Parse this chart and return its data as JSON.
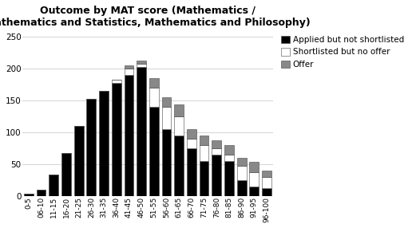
{
  "title": "Outcome by MAT score (Mathematics /\nMathematics and Statistics, Mathematics and Philosophy)",
  "categories": [
    "0-5",
    "06-10",
    "11-15",
    "16-20",
    "21-25",
    "26-30",
    "31-35",
    "36-40",
    "41-45",
    "46-50",
    "51-55",
    "56-60",
    "61-65",
    "66-70",
    "71-75",
    "76-80",
    "81-85",
    "86-90",
    "91-95",
    "96-100"
  ],
  "applied_not_shortlisted": [
    3,
    9,
    33,
    67,
    110,
    152,
    165,
    177,
    190,
    202,
    140,
    105,
    95,
    75,
    55,
    65,
    55,
    25,
    15,
    12
  ],
  "shortlisted_no_offer": [
    0,
    0,
    0,
    0,
    0,
    0,
    0,
    5,
    10,
    5,
    30,
    35,
    30,
    15,
    25,
    10,
    10,
    22,
    22,
    18
  ],
  "offer": [
    0,
    0,
    0,
    0,
    0,
    0,
    0,
    0,
    5,
    5,
    15,
    15,
    18,
    15,
    15,
    12,
    15,
    12,
    16,
    9
  ],
  "color_applied": "#000000",
  "color_shortlisted": "#ffffff",
  "color_offer": "#888888",
  "ylim": [
    0,
    260
  ],
  "yticks": [
    0,
    50,
    100,
    150,
    200,
    250
  ],
  "title_fontsize": 9,
  "title_color": "#000000",
  "tick_color": "#000000",
  "legend_fontsize": 7.5,
  "bar_edge_color": "#444444",
  "background_color": "#ffffff",
  "legend_labels": [
    "Applied but not shortlisted",
    "Shortlisted but no offer",
    "Offer"
  ]
}
